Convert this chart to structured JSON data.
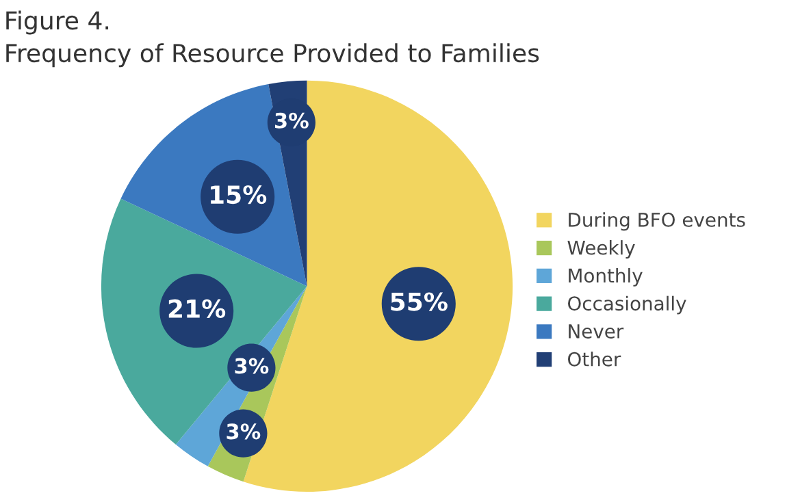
{
  "chart_data": {
    "type": "pie",
    "title": "Figure 4.",
    "subtitle": "Frequency of Resource Provided to Families",
    "categories": [
      "During BFO events",
      "Weekly",
      "Monthly",
      "Occasionally",
      "Never",
      "Other"
    ],
    "values": [
      55,
      3,
      3,
      21,
      15,
      3
    ],
    "colors": [
      "#f2d55f",
      "#a9c75b",
      "#5ea6d8",
      "#4aa99d",
      "#3b79c0",
      "#213f75"
    ],
    "value_labels": [
      "55%",
      "3%",
      "3%",
      "21%",
      "15%",
      "3%"
    ],
    "legend": "right"
  }
}
